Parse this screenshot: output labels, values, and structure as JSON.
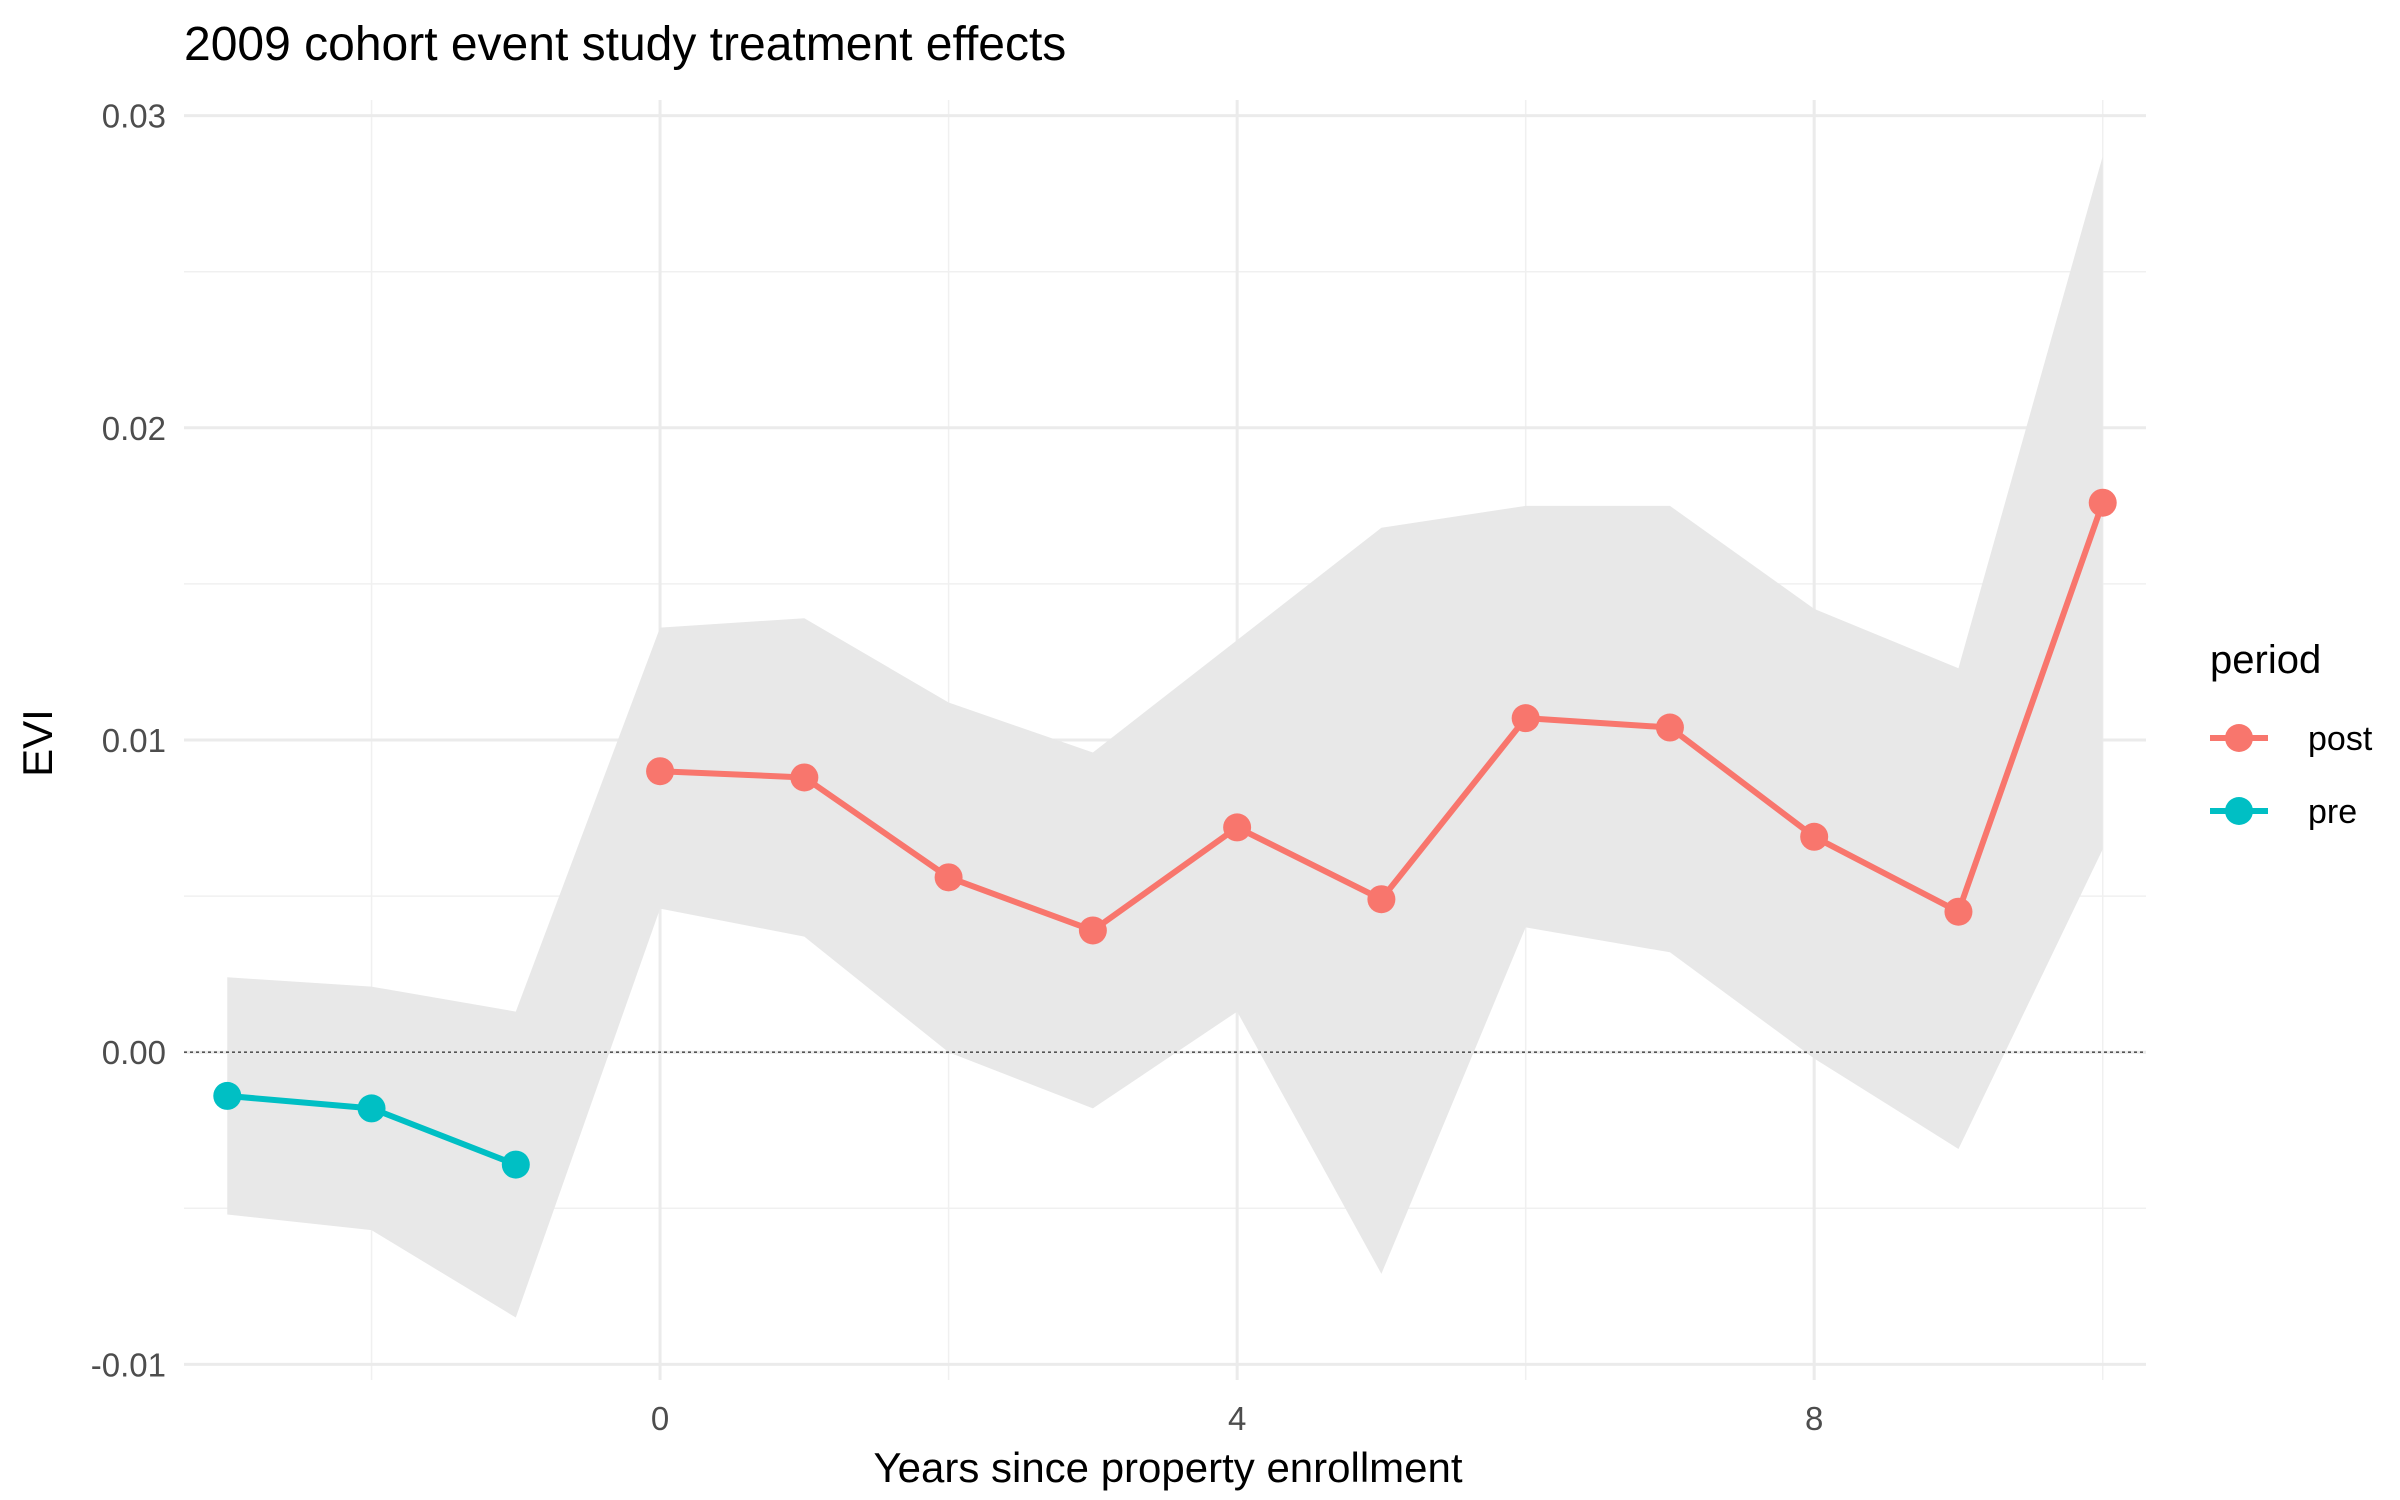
{
  "chart_data": {
    "type": "line",
    "title": "2009 cohort event study treatment effects",
    "xlabel": "Years since property enrollment",
    "ylabel": "EVI",
    "xlim": [
      -3.3,
      10.3
    ],
    "ylim": [
      -0.0105,
      0.0305
    ],
    "x_ticks": [
      {
        "value": 0,
        "label": "0"
      },
      {
        "value": 4,
        "label": "4"
      },
      {
        "value": 8,
        "label": "8"
      }
    ],
    "y_ticks": [
      {
        "value": -0.01,
        "label": "-0.01"
      },
      {
        "value": 0.0,
        "label": "0.00"
      },
      {
        "value": 0.01,
        "label": "0.01"
      },
      {
        "value": 0.02,
        "label": "0.02"
      },
      {
        "value": 0.03,
        "label": "0.03"
      }
    ],
    "reference_line": {
      "y": 0.0,
      "style": "dotted"
    },
    "grid": true,
    "legend": {
      "title": "period",
      "position": "right"
    },
    "confidence_band": {
      "x": [
        -3,
        -2,
        -1,
        0,
        1,
        2,
        3,
        4,
        5,
        6,
        7,
        8,
        9,
        10
      ],
      "lower": [
        -0.0052,
        -0.0057,
        -0.0085,
        0.0046,
        0.0037,
        0.0,
        -0.0018,
        0.0013,
        -0.0071,
        0.004,
        0.0032,
        -0.0002,
        -0.0031,
        0.0065
      ],
      "upper": [
        0.0024,
        0.0021,
        0.0013,
        0.0136,
        0.0139,
        0.0112,
        0.0096,
        0.0132,
        0.0168,
        0.0175,
        0.0175,
        0.0142,
        0.0123,
        0.0287
      ],
      "color": "#e8e8e8"
    },
    "series": [
      {
        "name": "post",
        "color": "#F8766D",
        "x": [
          0,
          1,
          2,
          3,
          4,
          5,
          6,
          7,
          8,
          9,
          10
        ],
        "y": [
          0.009,
          0.0088,
          0.0056,
          0.0039,
          0.0072,
          0.0049,
          0.0107,
          0.0104,
          0.0069,
          0.0045,
          0.0176
        ]
      },
      {
        "name": "pre",
        "color": "#00BFC4",
        "x": [
          -3,
          -2,
          -1
        ],
        "y": [
          -0.0014,
          -0.0018,
          -0.0036
        ]
      }
    ]
  }
}
